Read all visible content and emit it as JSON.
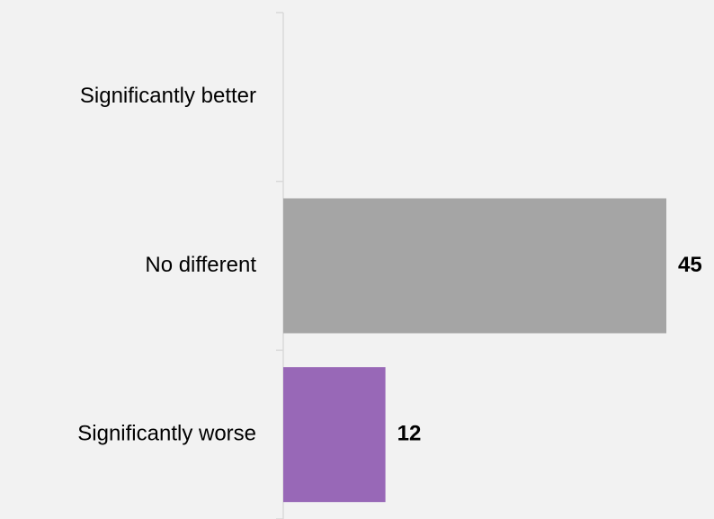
{
  "chart_data": {
    "type": "bar",
    "orientation": "horizontal",
    "categories": [
      "Significantly better",
      "No different",
      "Significantly worse"
    ],
    "values": [
      0,
      45,
      12
    ],
    "data_labels": [
      "",
      "45",
      "12"
    ],
    "colors": [
      "#a5a5a5",
      "#a5a5a5",
      "#9868b7"
    ],
    "xlim": [
      0,
      45
    ],
    "axis_color": "#d9d9d9",
    "background": "#f2f2f2",
    "grid": false,
    "legend": "none"
  }
}
